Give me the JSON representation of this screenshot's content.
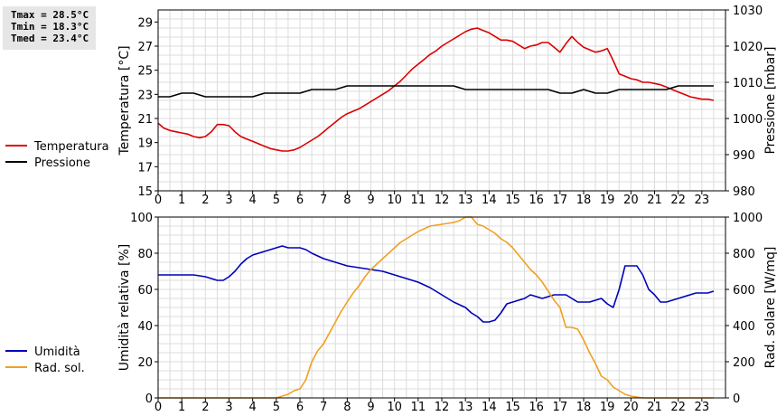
{
  "stats": {
    "tmax": "Tmax = 28.5°C",
    "tmin": "Tmin = 18.3°C",
    "tmed": "Tmed = 23.4°C"
  },
  "chart_data": [
    {
      "type": "line",
      "xlabel": "",
      "ylabel": "Temperatura [°C]",
      "y2label": "Pressione [mbar]",
      "xlim": [
        0,
        24
      ],
      "xticks": [
        "0",
        "1",
        "2",
        "3",
        "4",
        "5",
        "6",
        "7",
        "8",
        "9",
        "10",
        "11",
        "12",
        "13",
        "14",
        "15",
        "16",
        "17",
        "18",
        "19",
        "20",
        "21",
        "22",
        "23"
      ],
      "ylim": [
        15,
        30
      ],
      "yticks": [
        "15",
        "17",
        "19",
        "21",
        "23",
        "25",
        "27",
        "29"
      ],
      "y2lim": [
        980,
        1030
      ],
      "y2ticks": [
        "980",
        "990",
        "1000",
        "1010",
        "1020",
        "1030"
      ],
      "grid": true,
      "legend_position": "left",
      "series": [
        {
          "name": "Temperatura",
          "color": "#dd0000",
          "axis": "left",
          "x": [
            0,
            0.25,
            0.5,
            0.75,
            1,
            1.25,
            1.5,
            1.75,
            2,
            2.25,
            2.5,
            2.75,
            3,
            3.25,
            3.5,
            3.75,
            4,
            4.25,
            4.5,
            4.75,
            5,
            5.25,
            5.5,
            5.75,
            6,
            6.25,
            6.5,
            6.75,
            7,
            7.25,
            7.5,
            7.75,
            8,
            8.25,
            8.5,
            8.75,
            9,
            9.25,
            9.5,
            9.75,
            10,
            10.25,
            10.5,
            10.75,
            11,
            11.25,
            11.5,
            11.75,
            12,
            12.25,
            12.5,
            12.75,
            13,
            13.25,
            13.5,
            13.75,
            14,
            14.25,
            14.5,
            14.75,
            15,
            15.25,
            15.5,
            15.75,
            16,
            16.25,
            16.5,
            16.75,
            17,
            17.25,
            17.5,
            17.75,
            18,
            18.25,
            18.5,
            18.75,
            19,
            19.25,
            19.5,
            19.75,
            20,
            20.25,
            20.5,
            20.75,
            21,
            21.25,
            21.5,
            21.75,
            22,
            22.25,
            22.5,
            22.75,
            23,
            23.25,
            23.5
          ],
          "y": [
            20.6,
            20.2,
            20.0,
            19.9,
            19.8,
            19.7,
            19.5,
            19.4,
            19.5,
            19.9,
            20.5,
            20.5,
            20.4,
            19.9,
            19.5,
            19.3,
            19.1,
            18.9,
            18.7,
            18.5,
            18.4,
            18.3,
            18.3,
            18.4,
            18.6,
            18.9,
            19.2,
            19.5,
            19.9,
            20.3,
            20.7,
            21.1,
            21.4,
            21.6,
            21.8,
            22.1,
            22.4,
            22.7,
            23.0,
            23.3,
            23.7,
            24.1,
            24.6,
            25.1,
            25.5,
            25.9,
            26.3,
            26.6,
            27.0,
            27.3,
            27.6,
            27.9,
            28.2,
            28.4,
            28.5,
            28.3,
            28.1,
            27.8,
            27.5,
            27.5,
            27.4,
            27.1,
            26.8,
            27.0,
            27.1,
            27.3,
            27.3,
            26.9,
            26.5,
            27.2,
            27.8,
            27.3,
            26.9,
            26.7,
            26.5,
            26.6,
            26.8,
            25.8,
            24.7,
            24.5,
            24.3,
            24.2,
            24.0,
            24.0,
            23.9,
            23.8,
            23.6,
            23.4,
            23.2,
            23.0,
            22.8,
            22.7,
            22.6,
            22.6,
            22.5
          ]
        },
        {
          "name": "Pressione",
          "color": "#000000",
          "axis": "right",
          "x": [
            0,
            0.5,
            1,
            1.5,
            2,
            2.5,
            3,
            3.5,
            4,
            4.5,
            5,
            5.5,
            6,
            6.5,
            7,
            7.5,
            8,
            8.5,
            9,
            9.5,
            10,
            10.5,
            11,
            11.5,
            12,
            12.5,
            13,
            13.5,
            14,
            14.5,
            15,
            15.5,
            16,
            16.5,
            17,
            17.5,
            18,
            18.5,
            19,
            19.5,
            20,
            20.5,
            21,
            21.5,
            22,
            22.5,
            23,
            23.5
          ],
          "y": [
            1006,
            1006,
            1007,
            1007,
            1006,
            1006,
            1006,
            1006,
            1006,
            1007,
            1007,
            1007,
            1007,
            1008,
            1008,
            1008,
            1009,
            1009,
            1009,
            1009,
            1009,
            1009,
            1009,
            1009,
            1009,
            1009,
            1008,
            1008,
            1008,
            1008,
            1008,
            1008,
            1008,
            1008,
            1007,
            1007,
            1008,
            1007,
            1007,
            1008,
            1008,
            1008,
            1008,
            1008,
            1009,
            1009,
            1009,
            1009
          ]
        }
      ]
    },
    {
      "type": "line",
      "xlabel": "",
      "ylabel": "Umidità relativa [%]",
      "y2label": "Rad. solare [W/mq]",
      "xlim": [
        0,
        24
      ],
      "xticks": [
        "0",
        "1",
        "2",
        "3",
        "4",
        "5",
        "6",
        "7",
        "8",
        "9",
        "10",
        "11",
        "12",
        "13",
        "14",
        "15",
        "16",
        "17",
        "18",
        "19",
        "20",
        "21",
        "22",
        "23"
      ],
      "ylim": [
        0,
        100
      ],
      "yticks": [
        "0",
        "20",
        "40",
        "60",
        "80",
        "100"
      ],
      "y2lim": [
        0,
        1000
      ],
      "y2ticks": [
        "0",
        "200",
        "400",
        "600",
        "800",
        "1000"
      ],
      "grid": true,
      "legend_position": "left",
      "series": [
        {
          "name": "Umidità",
          "color": "#0000bb",
          "axis": "left",
          "x": [
            0,
            0.5,
            1,
            1.5,
            2,
            2.25,
            2.5,
            2.75,
            3,
            3.25,
            3.5,
            3.75,
            4,
            4.5,
            5,
            5.25,
            5.5,
            6,
            6.25,
            6.5,
            7,
            7.5,
            8,
            8.5,
            9,
            9.5,
            10,
            10.5,
            11,
            11.5,
            12,
            12.5,
            13,
            13.25,
            13.5,
            13.75,
            14,
            14.25,
            14.5,
            14.75,
            15,
            15.25,
            15.5,
            15.75,
            16,
            16.25,
            16.5,
            16.75,
            17,
            17.25,
            17.5,
            17.75,
            18,
            18.25,
            18.5,
            18.75,
            19,
            19.25,
            19.5,
            19.75,
            20,
            20.25,
            20.5,
            20.75,
            21,
            21.25,
            21.5,
            21.75,
            22,
            22.25,
            22.5,
            22.75,
            23,
            23.25,
            23.5
          ],
          "y": [
            68,
            68,
            68,
            68,
            67,
            66,
            65,
            65,
            67,
            70,
            74,
            77,
            79,
            81,
            83,
            84,
            83,
            83,
            82,
            80,
            77,
            75,
            73,
            72,
            71,
            70,
            68,
            66,
            64,
            61,
            57,
            53,
            50,
            47,
            45,
            42,
            42,
            43,
            47,
            52,
            53,
            54,
            55,
            57,
            56,
            55,
            56,
            57,
            57,
            57,
            55,
            53,
            53,
            53,
            54,
            55,
            52,
            50,
            60,
            73,
            73,
            73,
            68,
            60,
            57,
            53,
            53,
            54,
            55,
            56,
            57,
            58,
            58,
            58,
            59
          ]
        },
        {
          "name": "Rad. sol.",
          "color": "#f0a020",
          "axis": "right",
          "x": [
            0,
            0.5,
            1,
            1.5,
            2,
            2.5,
            3,
            3.5,
            4,
            4.5,
            5,
            5.25,
            5.5,
            5.75,
            6,
            6.25,
            6.5,
            6.75,
            7,
            7.25,
            7.5,
            7.75,
            8,
            8.25,
            8.5,
            8.75,
            9,
            9.25,
            9.5,
            9.75,
            10,
            10.25,
            10.5,
            10.75,
            11,
            11.25,
            11.5,
            11.75,
            12,
            12.25,
            12.5,
            12.75,
            13,
            13.25,
            13.5,
            13.75,
            14,
            14.25,
            14.5,
            14.75,
            15,
            15.25,
            15.5,
            15.75,
            16,
            16.25,
            16.5,
            16.75,
            17,
            17.25,
            17.5,
            17.75,
            18,
            18.25,
            18.5,
            18.75,
            19,
            19.25,
            19.5,
            19.75,
            20,
            20.5,
            21,
            21.5,
            22,
            22.5,
            23,
            23.5
          ],
          "y": [
            0,
            0,
            0,
            0,
            0,
            0,
            0,
            0,
            0,
            0,
            0,
            10,
            20,
            40,
            50,
            100,
            200,
            260,
            300,
            360,
            420,
            480,
            530,
            580,
            620,
            670,
            710,
            740,
            770,
            800,
            830,
            860,
            880,
            900,
            920,
            935,
            950,
            955,
            960,
            965,
            970,
            980,
            1000,
            1000,
            960,
            950,
            930,
            910,
            880,
            860,
            830,
            790,
            750,
            710,
            680,
            640,
            590,
            540,
            500,
            390,
            390,
            380,
            320,
            250,
            190,
            120,
            100,
            60,
            40,
            20,
            10,
            0,
            0,
            0,
            0,
            0,
            0,
            0
          ]
        }
      ]
    }
  ]
}
